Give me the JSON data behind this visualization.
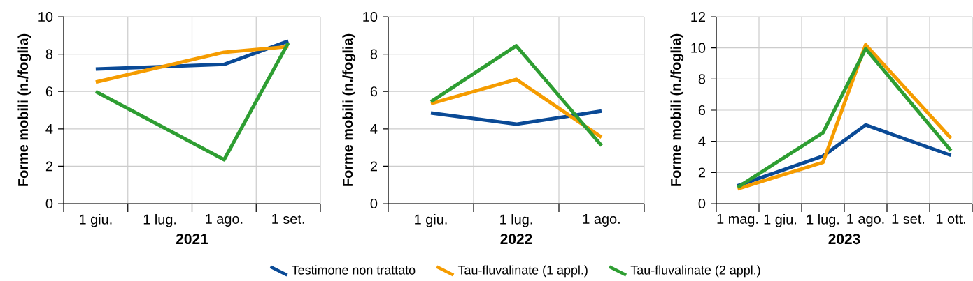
{
  "chart_data": [
    {
      "type": "line",
      "xlabel": "2021",
      "ylabel": "Forme mobili (n./foglia)",
      "categories": [
        "1 giu.",
        "1 lug.",
        "1 ago.",
        "1 set."
      ],
      "ylim": [
        0,
        10
      ],
      "yticks": [
        0,
        2,
        4,
        6,
        8,
        10
      ],
      "grid": true,
      "series": [
        {
          "color": "#0a4a96",
          "values": [
            7.2,
            null,
            7.45,
            8.7
          ]
        },
        {
          "color": "#f59c00",
          "values": [
            6.5,
            null,
            8.1,
            8.4
          ]
        },
        {
          "color": "#2e9e32",
          "values": [
            6.0,
            null,
            2.35,
            8.6
          ]
        }
      ]
    },
    {
      "type": "line",
      "xlabel": "2022",
      "ylabel": "Forme mobili (n./foglia)",
      "categories": [
        "1 giu.",
        "1 lug.",
        "1 ago."
      ],
      "ylim": [
        0,
        10
      ],
      "yticks": [
        0,
        2,
        4,
        6,
        8,
        10
      ],
      "grid": true,
      "legend": "bottom",
      "series": [
        {
          "name": "Testimone non trattato",
          "color": "#0a4a96",
          "values": [
            4.85,
            4.25,
            4.95
          ]
        },
        {
          "name": "Tau-fluvalinate (1 appl.)",
          "color": "#f59c00",
          "values": [
            5.35,
            6.65,
            3.55
          ]
        },
        {
          "name": "Tau-fluvalinate (2 appl.)",
          "color": "#2e9e32",
          "values": [
            5.45,
            8.45,
            3.1
          ]
        }
      ]
    },
    {
      "type": "line",
      "xlabel": "2023",
      "ylabel": "Forme mobili (n./foglia)",
      "categories": [
        "1 mag.",
        "1 giu.",
        "1 lug.",
        "1 ago.",
        "1 set.",
        "1 ott."
      ],
      "ylim": [
        0,
        12
      ],
      "yticks": [
        0,
        2,
        4,
        6,
        8,
        10,
        12
      ],
      "grid": true,
      "series": [
        {
          "color": "#0a4a96",
          "values": [
            1.15,
            null,
            3.05,
            5.05,
            null,
            3.1
          ]
        },
        {
          "color": "#f59c00",
          "values": [
            0.95,
            null,
            2.65,
            10.2,
            null,
            4.2
          ]
        },
        {
          "color": "#2e9e32",
          "values": [
            1.05,
            null,
            4.55,
            9.95,
            null,
            3.4
          ]
        }
      ]
    }
  ]
}
